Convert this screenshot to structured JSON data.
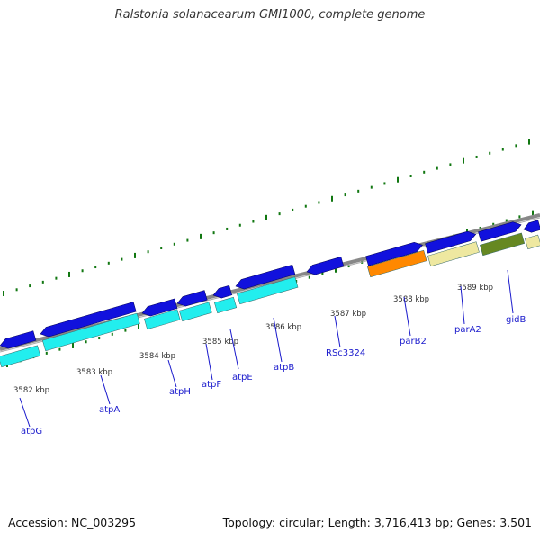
{
  "title": "Ralstonia solanacearum GMI1000, complete genome",
  "footer": {
    "accession": "Accession: NC_003295",
    "summary": "Topology: circular; Length: 3,716,413 bp; Genes: 3,501"
  },
  "colors": {
    "backbone": "#888888",
    "tick": "#117711",
    "gene_blue": "#1111dd",
    "cds_cyan": "#22eeee",
    "cds_orange": "#ff8800",
    "cds_khaki": "#eee8a0",
    "cds_olive": "#668822",
    "label": "#1a1acc",
    "kbp_text": "#333333"
  },
  "kbp_labels": [
    "3582 kbp",
    "3583 kbp",
    "3584 kbp",
    "3585 kbp",
    "3586 kbp",
    "3587 kbp",
    "3588 kbp",
    "3589 kbp"
  ],
  "gene_labels": [
    "atpG",
    "atpA",
    "atpH",
    "atpF",
    "atpE",
    "atpB",
    "RSc3324",
    "parB2",
    "parA2",
    "gidB"
  ]
}
